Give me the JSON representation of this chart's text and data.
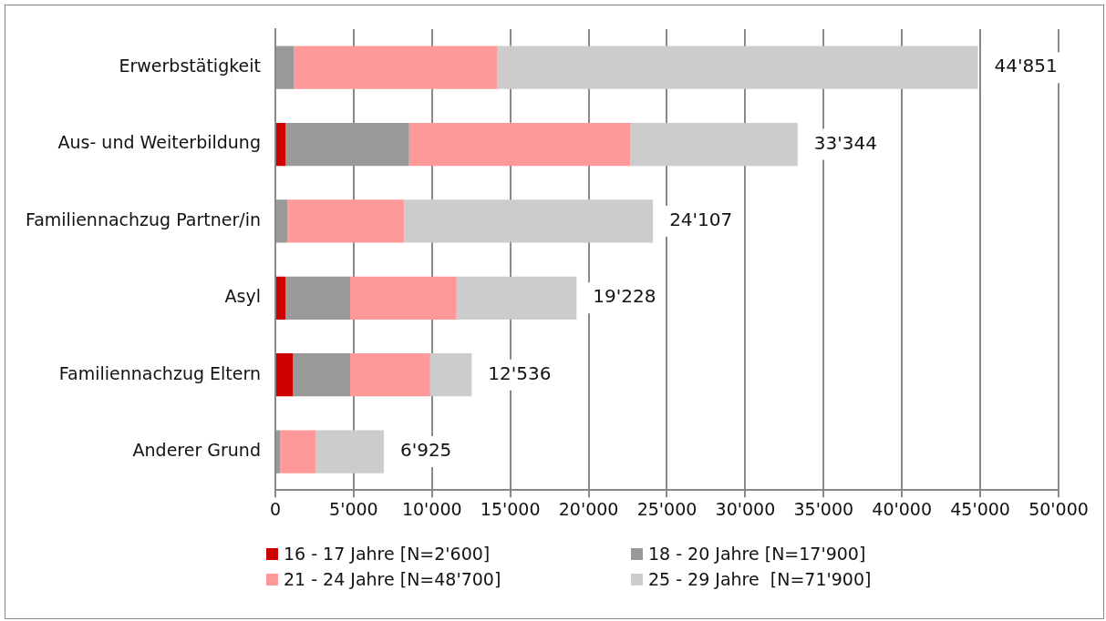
{
  "chart_data": {
    "type": "bar",
    "orientation": "horizontal",
    "stacked": true,
    "categories": [
      "Erwerbstätigkeit",
      "Aus- und Weiterbildung",
      "Familiennachzug Partner/in",
      "Asyl",
      "Familiennachzug Eltern",
      "Anderer Grund"
    ],
    "series": [
      {
        "name": "16 - 17 Jahre [N=2'600]",
        "color": "#cc0000",
        "values": [
          0,
          650,
          0,
          650,
          1130,
          0
        ]
      },
      {
        "name": "18 - 20 Jahre [N=17'900]",
        "color": "#999999",
        "values": [
          1190,
          7890,
          770,
          4125,
          3645,
          320
        ]
      },
      {
        "name": "21 - 24 Jahre [N=48'700]",
        "color": "#ff9999",
        "values": [
          12990,
          14140,
          7465,
          6795,
          5115,
          2270
        ]
      },
      {
        "name": "25 - 29 Jahre  [N=71'900]",
        "color": "#cccccc",
        "values": [
          30671,
          10664,
          15872,
          7658,
          2646,
          4335
        ]
      }
    ],
    "totals": [
      "44'851",
      "33'344",
      "24'107",
      "19'228",
      "12'536",
      "6'925"
    ],
    "xlim": [
      0,
      50000
    ],
    "xticks": [
      0,
      {
        "value": 5000,
        "label": "5'000"
      },
      {
        "value": 10000,
        "label": "10'000"
      },
      {
        "value": 15000,
        "label": "15'000"
      },
      {
        "value": 20000,
        "label": "20'000"
      },
      {
        "value": 25000,
        "label": "25'000"
      },
      {
        "value": 30000,
        "label": "30'000"
      },
      {
        "value": 35000,
        "label": "35'000"
      },
      {
        "value": 40000,
        "label": "40'000"
      },
      {
        "value": 45000,
        "label": "45'000"
      },
      {
        "value": 50000,
        "label": "50'000"
      }
    ],
    "grid": "x",
    "legend": "bottom"
  }
}
